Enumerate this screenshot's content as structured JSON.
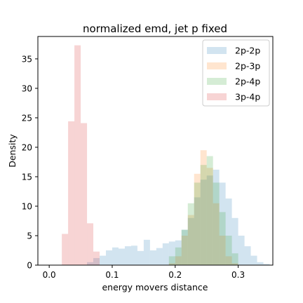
{
  "chart_data": {
    "type": "bar",
    "title": "normalized emd, jet p fixed",
    "xlabel": "energy movers distance",
    "ylabel": "Density",
    "xlim": [
      -0.018,
      0.355
    ],
    "ylim": [
      0,
      38.8
    ],
    "xticks": [
      0.0,
      0.1,
      0.2,
      0.3
    ],
    "xtick_labels": [
      "0.0",
      "0.1",
      "0.2",
      "0.3"
    ],
    "yticks": [
      0,
      5,
      10,
      15,
      20,
      25,
      30,
      35
    ],
    "ytick_labels": [
      "0",
      "5",
      "10",
      "15",
      "20",
      "25",
      "30",
      "35"
    ],
    "legend_position": "top-right",
    "opacity": 0.2,
    "series": [
      {
        "name": "2p-2p",
        "color": "#1f77b4",
        "bin_width": 0.01,
        "bin_starts": [
          0.06,
          0.07,
          0.08,
          0.09,
          0.1,
          0.11,
          0.12,
          0.13,
          0.14,
          0.15,
          0.16,
          0.17,
          0.18,
          0.19,
          0.2,
          0.21,
          0.22,
          0.23,
          0.24,
          0.25,
          0.26,
          0.27,
          0.28,
          0.29,
          0.3,
          0.31,
          0.32,
          0.33,
          0.34
        ],
        "values": [
          0.5,
          1.2,
          1.6,
          2.5,
          3.0,
          2.8,
          3.2,
          3.3,
          2.4,
          4.3,
          2.5,
          2.9,
          3.7,
          4.0,
          4.2,
          6.0,
          8.0,
          11.5,
          14.5,
          15.2,
          16.2,
          14.0,
          11.3,
          8.0,
          5.0,
          3.2,
          1.6,
          0.5,
          0.2
        ]
      },
      {
        "name": "2p-3p",
        "color": "#ff7f0e",
        "bin_width": 0.01,
        "bin_starts": [
          0.19,
          0.2,
          0.21,
          0.22,
          0.23,
          0.24,
          0.25,
          0.26,
          0.27,
          0.28,
          0.29
        ],
        "values": [
          0.3,
          1.5,
          5.0,
          8.5,
          15.5,
          19.5,
          16.5,
          10.5,
          5.0,
          1.5,
          0.3
        ]
      },
      {
        "name": "2p-4p",
        "color": "#2ca02c",
        "bin_width": 0.01,
        "bin_starts": [
          0.19,
          0.2,
          0.21,
          0.22,
          0.23,
          0.24,
          0.25,
          0.26,
          0.27,
          0.28,
          0.29
        ],
        "values": [
          1.5,
          3.0,
          6.0,
          10.5,
          14.0,
          17.0,
          18.5,
          14.0,
          9.0,
          5.0,
          2.0
        ]
      },
      {
        "name": "3p-4p",
        "color": "#d62728",
        "bin_width": 0.01,
        "bin_starts": [
          0.02,
          0.03,
          0.04,
          0.05,
          0.06,
          0.07
        ],
        "values": [
          5.3,
          24.4,
          37.3,
          24.1,
          7.1,
          2.3
        ]
      }
    ]
  }
}
